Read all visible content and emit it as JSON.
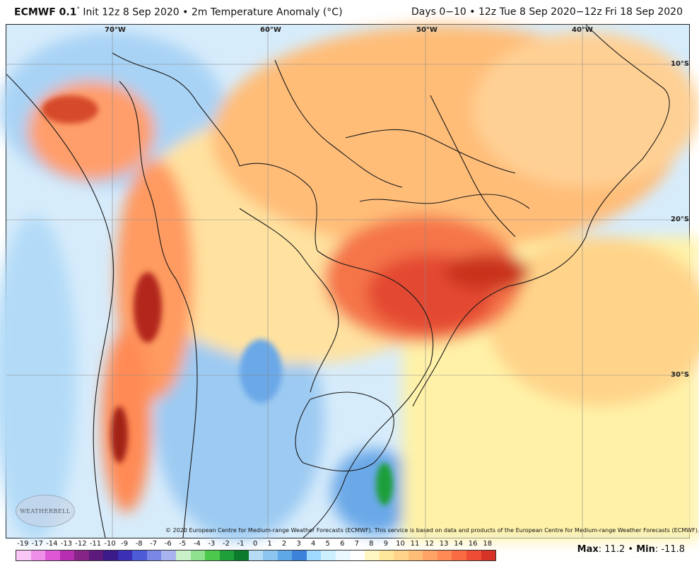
{
  "header": {
    "model": "ECMWF 0.1",
    "degree": "°",
    "init": "Init 12z 8 Sep 2020",
    "bullet": "•",
    "field": "2m Temperature Anomaly (°C)",
    "period": "Days 0−10 • 12z Tue 8 Sep 2020−12z Fri 18 Sep 2020"
  },
  "axes": {
    "lon_labels": [
      "70°W",
      "60°W",
      "50°W",
      "40°W"
    ],
    "lat_labels": [
      "10°S",
      "20°S",
      "30°S"
    ]
  },
  "credit": "© 2020 European Centre for Medium-range Weather Forecasts (ECMWF). This service is based on data and products of the European Centre for Medium-range Weather Forecasts (ECMWF).",
  "logo": "WEATHERBELL",
  "scale": {
    "labels": [
      "-19",
      "-17",
      "-14",
      "-13",
      "-12",
      "-11",
      "-10",
      "-9",
      "-8",
      "-7",
      "-6",
      "-5",
      "-4",
      "-3",
      "-2",
      "-1",
      "0",
      "1",
      "2",
      "3",
      "4",
      "5",
      "6",
      "7",
      "8",
      "9",
      "10",
      "11",
      "12",
      "13",
      "14",
      "16",
      "18"
    ],
    "colors": [
      "#f9c6f5",
      "#ef8fe9",
      "#de58d6",
      "#b52fb0",
      "#862487",
      "#5d1a7c",
      "#3b1a8a",
      "#3b2fb5",
      "#4c5bd6",
      "#7a87e6",
      "#a9b3f0",
      "#c9f0c9",
      "#8fe08f",
      "#4cc84c",
      "#1f9f3a",
      "#0c7a2c",
      "#b7dcf5",
      "#8cc6f0",
      "#5ea8e8",
      "#3b82db",
      "#9fd9ff",
      "#cdf0ff",
      "#eaf8ff",
      "#ffffff",
      "#fff7c2",
      "#ffe79a",
      "#ffd38a",
      "#ffbe78",
      "#ffa466",
      "#ff8a55",
      "#f96c43",
      "#ec4d34",
      "#d63326"
    ]
  },
  "stats": {
    "max_label": "Max",
    "max_value": ": 11.2",
    "sep": "•",
    "min_label": "Min",
    "min_value": ": -11.8"
  }
}
